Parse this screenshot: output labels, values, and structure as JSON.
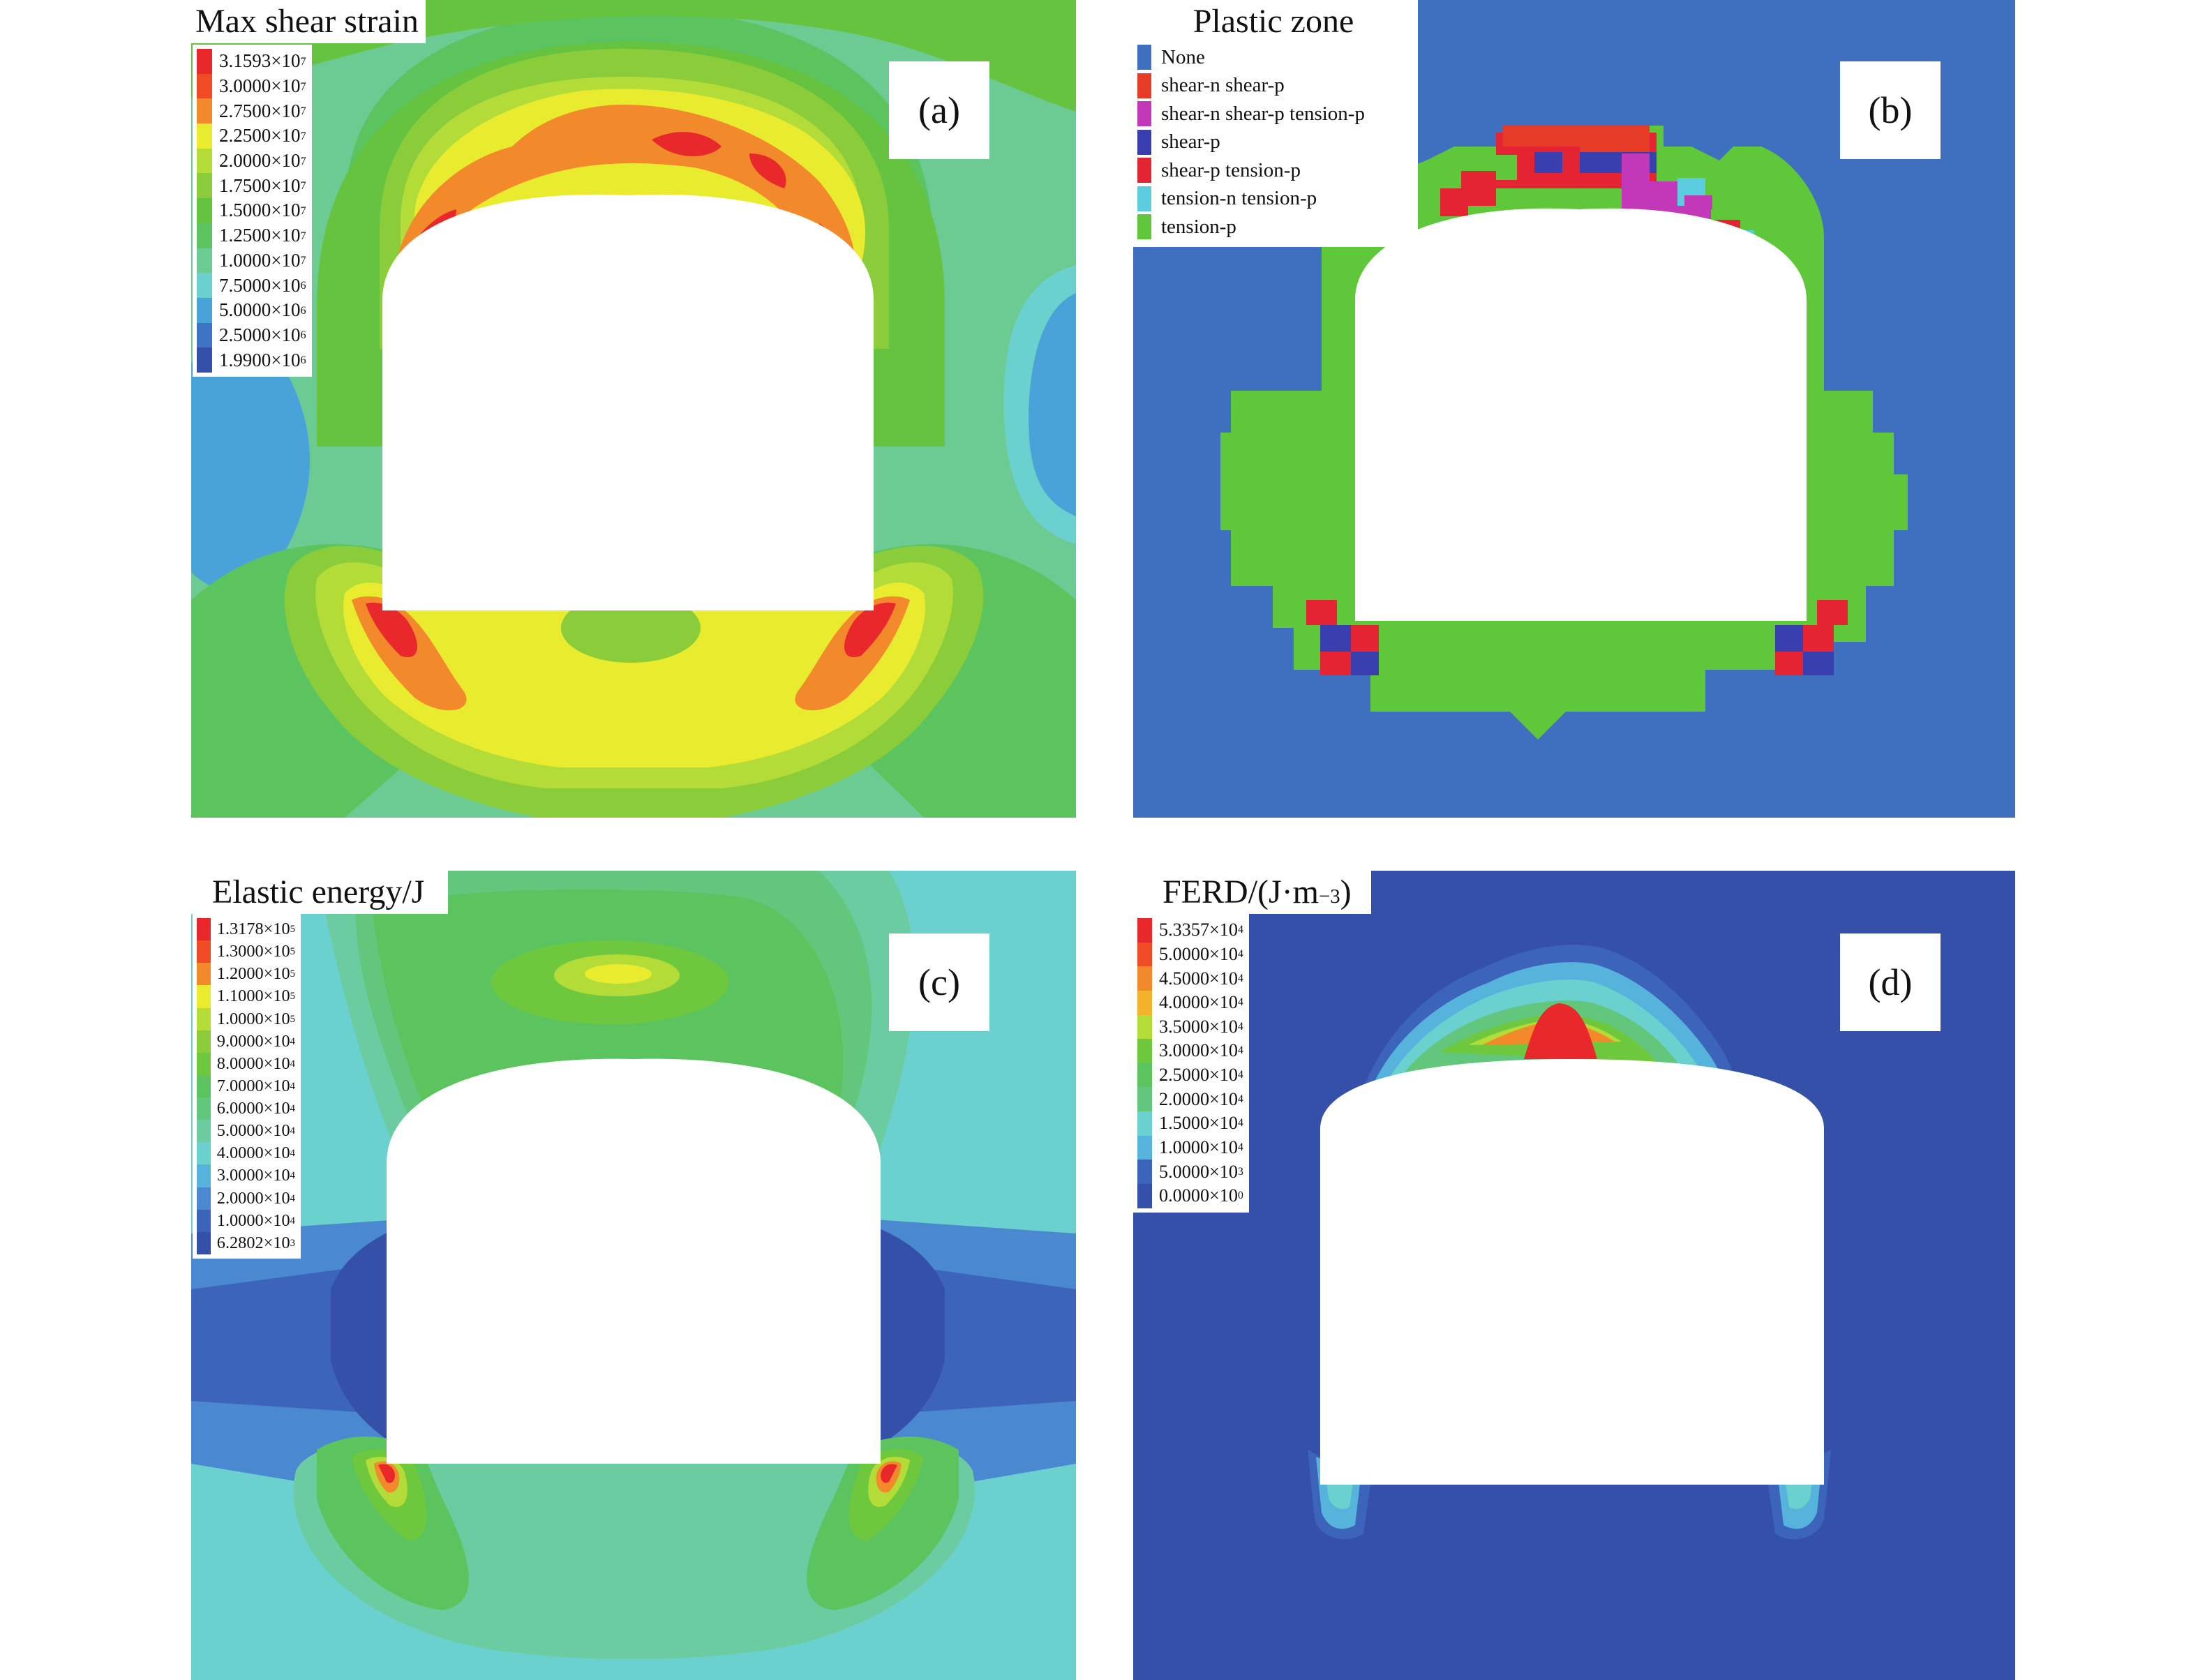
{
  "panels": [
    {
      "tag": "(a)",
      "title": "Max shear strain",
      "legend_unit": "×10",
      "legend": [
        {
          "mantissa": "3.1593",
          "exp": "7",
          "color": "#e8282a"
        },
        {
          "mantissa": "3.0000",
          "exp": "7",
          "color": "#ef4b24"
        },
        {
          "mantissa": "2.7500",
          "exp": "7",
          "color": "#f28a2c"
        },
        {
          "mantissa": "2.2500",
          "exp": "7",
          "color": "#e9ec2e"
        },
        {
          "mantissa": "2.0000",
          "exp": "7",
          "color": "#b3dc38"
        },
        {
          "mantissa": "1.7500",
          "exp": "7",
          "color": "#8acc3a"
        },
        {
          "mantissa": "1.5000",
          "exp": "7",
          "color": "#65c340"
        },
        {
          "mantissa": "1.2500",
          "exp": "7",
          "color": "#5cc45e"
        },
        {
          "mantissa": "1.0000",
          "exp": "7",
          "color": "#6ccb92"
        },
        {
          "mantissa": "7.5000",
          "exp": "6",
          "color": "#6ad1cf"
        },
        {
          "mantissa": "5.0000",
          "exp": "6",
          "color": "#4aa3d8"
        },
        {
          "mantissa": "2.5000",
          "exp": "6",
          "color": "#3e73c6"
        },
        {
          "mantissa": "1.9900",
          "exp": "6",
          "color": "#3450a8"
        }
      ]
    },
    {
      "tag": "(b)",
      "title": "Plastic zone",
      "legend": [
        {
          "label": "None",
          "color": "#3f70c0"
        },
        {
          "label": "shear-n shear-p",
          "color": "#e63b26"
        },
        {
          "label": "shear-n shear-p tension-p",
          "color": "#c337b9"
        },
        {
          "label": "shear-p",
          "color": "#3a3fb0"
        },
        {
          "label": "shear-p tension-p",
          "color": "#e42433"
        },
        {
          "label": "tension-n tension-p",
          "color": "#5ccde0"
        },
        {
          "label": "tension-p",
          "color": "#5ec83a"
        }
      ]
    },
    {
      "tag": "(c)",
      "title": "Elastic energy/J",
      "legend_unit": "×10",
      "legend": [
        {
          "mantissa": "1.3178",
          "exp": "5",
          "color": "#e8282a"
        },
        {
          "mantissa": "1.3000",
          "exp": "5",
          "color": "#ef4b24"
        },
        {
          "mantissa": "1.2000",
          "exp": "5",
          "color": "#f28a2c"
        },
        {
          "mantissa": "1.1000",
          "exp": "5",
          "color": "#e9ec2e"
        },
        {
          "mantissa": "1.0000",
          "exp": "5",
          "color": "#b3dc38"
        },
        {
          "mantissa": "9.0000",
          "exp": "4",
          "color": "#8acc3a"
        },
        {
          "mantissa": "8.0000",
          "exp": "4",
          "color": "#6ec83e"
        },
        {
          "mantissa": "7.0000",
          "exp": "4",
          "color": "#5cc45e"
        },
        {
          "mantissa": "6.0000",
          "exp": "4",
          "color": "#62c77c"
        },
        {
          "mantissa": "5.0000",
          "exp": "4",
          "color": "#6bcca2"
        },
        {
          "mantissa": "4.0000",
          "exp": "4",
          "color": "#6ad1cf"
        },
        {
          "mantissa": "3.0000",
          "exp": "4",
          "color": "#55b3dc"
        },
        {
          "mantissa": "2.0000",
          "exp": "4",
          "color": "#4a88d0"
        },
        {
          "mantissa": "1.0000",
          "exp": "4",
          "color": "#3c64bb"
        },
        {
          "mantissa": "6.2802",
          "exp": "3",
          "color": "#3450a8"
        }
      ]
    },
    {
      "tag": "(d)",
      "title": "FERD/(J·m",
      "title_exp": "−3",
      "title_close": ")",
      "legend_unit": "×10",
      "legend": [
        {
          "mantissa": "5.3357",
          "exp": "4",
          "color": "#e8282a"
        },
        {
          "mantissa": "5.0000",
          "exp": "4",
          "color": "#ef4b24"
        },
        {
          "mantissa": "4.5000",
          "exp": "4",
          "color": "#f28a2c"
        },
        {
          "mantissa": "4.0000",
          "exp": "4",
          "color": "#f2b22c"
        },
        {
          "mantissa": "3.5000",
          "exp": "4",
          "color": "#b3dc38"
        },
        {
          "mantissa": "3.0000",
          "exp": "4",
          "color": "#6ec83e"
        },
        {
          "mantissa": "2.5000",
          "exp": "4",
          "color": "#5cc45e"
        },
        {
          "mantissa": "2.0000",
          "exp": "4",
          "color": "#62c77c"
        },
        {
          "mantissa": "1.5000",
          "exp": "4",
          "color": "#6ad1cf"
        },
        {
          "mantissa": "1.0000",
          "exp": "4",
          "color": "#55b3dc"
        },
        {
          "mantissa": "5.0000",
          "exp": "3",
          "color": "#3c64bb"
        },
        {
          "mantissa": "0.0000",
          "exp": "0",
          "color": "#3450a8"
        }
      ]
    }
  ]
}
